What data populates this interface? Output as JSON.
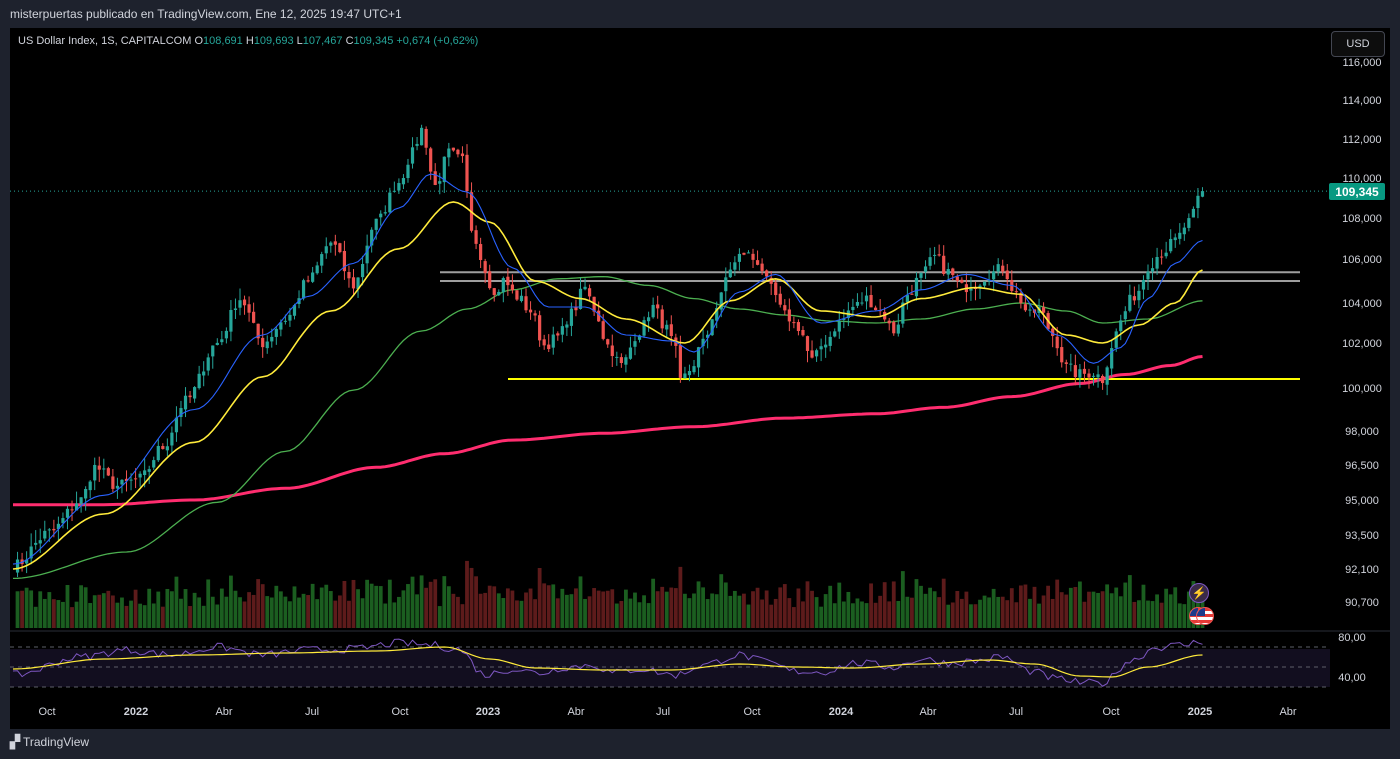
{
  "header": {
    "caption": "misterpuertas publicado en TradingView.com, Ene 12, 2025 19:47 UTC+1"
  },
  "legend": {
    "symbol": "US Dollar Index, 1S, CAPITALCOM",
    "o_label": "O",
    "o_value": "108,691",
    "h_label": "H",
    "h_value": "109,693",
    "l_label": "L",
    "l_value": "107,467",
    "c_label": "C",
    "c_value": "109,345",
    "change": "+0,674 (+0,62%)"
  },
  "toolbar": {
    "currency_label": "USD"
  },
  "price_badge": "109,345",
  "footer": {
    "brand": "TradingView"
  },
  "colors": {
    "up": "#26a69a",
    "down": "#ef5350",
    "vol_up": "#1b5e20",
    "vol_down": "#5d1b1b",
    "ema_fast": "#2962ff",
    "ema_yellow": "#ffeb3b",
    "ema_green": "#4caf50",
    "ema_long": "#ff2d6f",
    "support": "#ffff00",
    "resistance": "#9e9e9e",
    "rsi": "#7e57c2",
    "rsi_ma": "#ffeb3b"
  },
  "chart_data": {
    "type": "candlestick",
    "price_ticks": [
      "116,000",
      "114,000",
      "112,000",
      "110,000",
      "108,000",
      "106,000",
      "104,000",
      "102,000",
      "100,000",
      "98,000",
      "96,500",
      "95,000",
      "93,500",
      "92,100",
      "90,700"
    ],
    "rsi_ticks": [
      "80,00",
      "40,00"
    ],
    "time_ticks": [
      "Oct",
      "2022",
      "Abr",
      "Jul",
      "Oct",
      "2023",
      "Abr",
      "Jul",
      "Oct",
      "2024",
      "Abr",
      "Jul",
      "Oct",
      "2025",
      "Abr"
    ],
    "last_price": 109.345,
    "support_level": 100.4,
    "resistance_band": [
      105.0,
      105.4
    ],
    "anchors": [
      [
        0,
        92.2
      ],
      [
        8,
        93.6
      ],
      [
        15,
        95.0
      ],
      [
        18,
        96.4
      ],
      [
        23,
        95.6
      ],
      [
        28,
        95.9
      ],
      [
        33,
        97.3
      ],
      [
        38,
        99.4
      ],
      [
        45,
        102.0
      ],
      [
        50,
        104.2
      ],
      [
        55,
        102.0
      ],
      [
        60,
        103.2
      ],
      [
        65,
        105.0
      ],
      [
        70,
        106.8
      ],
      [
        75,
        104.8
      ],
      [
        80,
        107.8
      ],
      [
        85,
        109.8
      ],
      [
        88,
        111.3
      ],
      [
        90,
        112.5
      ],
      [
        93,
        109.6
      ],
      [
        96,
        111.3
      ],
      [
        99,
        110.9
      ],
      [
        101,
        107.5
      ],
      [
        104,
        105.6
      ],
      [
        106,
        104.3
      ],
      [
        108,
        105.0
      ],
      [
        111,
        104.3
      ],
      [
        114,
        103.6
      ],
      [
        117,
        101.9
      ],
      [
        120,
        102.3
      ],
      [
        123,
        103.5
      ],
      [
        126,
        104.7
      ],
      [
        128,
        103.7
      ],
      [
        131,
        101.9
      ],
      [
        134,
        101.0
      ],
      [
        138,
        102.6
      ],
      [
        141,
        103.8
      ],
      [
        144,
        102.7
      ],
      [
        146,
        101.6
      ],
      [
        147,
        100.2
      ],
      [
        149,
        100.8
      ],
      [
        152,
        102.0
      ],
      [
        155,
        103.8
      ],
      [
        158,
        105.6
      ],
      [
        161,
        106.3
      ],
      [
        164,
        105.9
      ],
      [
        167,
        104.6
      ],
      [
        170,
        103.4
      ],
      [
        173,
        102.8
      ],
      [
        176,
        101.2
      ],
      [
        179,
        102.1
      ],
      [
        182,
        103.0
      ],
      [
        185,
        103.8
      ],
      [
        188,
        104.2
      ],
      [
        191,
        103.6
      ],
      [
        194,
        102.6
      ],
      [
        197,
        104.4
      ],
      [
        200,
        105.2
      ],
      [
        203,
        106.1
      ],
      [
        206,
        105.4
      ],
      [
        209,
        104.7
      ],
      [
        212,
        104.9
      ],
      [
        215,
        105.3
      ],
      [
        218,
        105.6
      ],
      [
        221,
        104.4
      ],
      [
        224,
        103.4
      ],
      [
        226,
        103.7
      ],
      [
        229,
        102.4
      ],
      [
        232,
        100.9
      ],
      [
        235,
        100.6
      ],
      [
        238,
        100.7
      ],
      [
        240,
        100.4
      ],
      [
        242,
        101.9
      ],
      [
        244,
        103.1
      ],
      [
        246,
        104.1
      ],
      [
        248,
        104.6
      ],
      [
        250,
        105.7
      ],
      [
        253,
        106.3
      ],
      [
        256,
        106.9
      ],
      [
        259,
        107.8
      ],
      [
        262,
        109.345
      ]
    ],
    "ema_fast_anchors": [
      [
        0,
        92.3
      ],
      [
        20,
        95.2
      ],
      [
        40,
        99.0
      ],
      [
        55,
        102.4
      ],
      [
        65,
        104.3
      ],
      [
        75,
        105.8
      ],
      [
        85,
        108.5
      ],
      [
        92,
        110.2
      ],
      [
        100,
        109.3
      ],
      [
        110,
        105.6
      ],
      [
        118,
        103.8
      ],
      [
        126,
        103.8
      ],
      [
        135,
        102.4
      ],
      [
        145,
        102.1
      ],
      [
        150,
        101.6
      ],
      [
        160,
        104.5
      ],
      [
        168,
        105.3
      ],
      [
        178,
        103.0
      ],
      [
        190,
        103.6
      ],
      [
        200,
        104.6
      ],
      [
        210,
        105.3
      ],
      [
        220,
        104.8
      ],
      [
        230,
        102.4
      ],
      [
        238,
        101.1
      ],
      [
        244,
        101.8
      ],
      [
        250,
        104.2
      ],
      [
        256,
        105.8
      ],
      [
        262,
        106.9
      ]
    ],
    "ema_yellow_anchors": [
      [
        0,
        92.1
      ],
      [
        20,
        94.4
      ],
      [
        40,
        97.5
      ],
      [
        55,
        100.5
      ],
      [
        70,
        103.6
      ],
      [
        85,
        106.5
      ],
      [
        97,
        108.8
      ],
      [
        105,
        107.8
      ],
      [
        115,
        105.0
      ],
      [
        125,
        104.2
      ],
      [
        135,
        103.2
      ],
      [
        148,
        102.0
      ],
      [
        158,
        104.1
      ],
      [
        168,
        105.1
      ],
      [
        178,
        103.6
      ],
      [
        190,
        103.3
      ],
      [
        200,
        104.2
      ],
      [
        212,
        104.7
      ],
      [
        222,
        104.4
      ],
      [
        232,
        102.4
      ],
      [
        240,
        102.0
      ],
      [
        248,
        102.9
      ],
      [
        256,
        104.0
      ],
      [
        262,
        105.5
      ]
    ],
    "ema_green_anchors": [
      [
        0,
        91.7
      ],
      [
        25,
        92.8
      ],
      [
        45,
        94.9
      ],
      [
        60,
        97.1
      ],
      [
        75,
        99.9
      ],
      [
        90,
        102.6
      ],
      [
        100,
        103.7
      ],
      [
        110,
        104.6
      ],
      [
        120,
        105.1
      ],
      [
        130,
        105.2
      ],
      [
        140,
        104.8
      ],
      [
        150,
        104.2
      ],
      [
        160,
        103.7
      ],
      [
        170,
        103.4
      ],
      [
        180,
        103.1
      ],
      [
        190,
        103.0
      ],
      [
        200,
        103.2
      ],
      [
        212,
        103.7
      ],
      [
        222,
        104.0
      ],
      [
        232,
        103.6
      ],
      [
        240,
        103.0
      ],
      [
        250,
        103.2
      ],
      [
        262,
        104.1
      ]
    ],
    "ema_long_anchors": [
      [
        0,
        94.8
      ],
      [
        20,
        94.8
      ],
      [
        40,
        95.0
      ],
      [
        60,
        95.5
      ],
      [
        80,
        96.4
      ],
      [
        95,
        97.0
      ],
      [
        110,
        97.6
      ],
      [
        130,
        97.9
      ],
      [
        150,
        98.2
      ],
      [
        170,
        98.6
      ],
      [
        190,
        98.8
      ],
      [
        205,
        99.1
      ],
      [
        220,
        99.6
      ],
      [
        235,
        100.2
      ],
      [
        245,
        100.6
      ],
      [
        255,
        101.0
      ],
      [
        262,
        101.4
      ]
    ],
    "rsi_anchors": [
      [
        0,
        42
      ],
      [
        15,
        60
      ],
      [
        25,
        67
      ],
      [
        35,
        62
      ],
      [
        45,
        70
      ],
      [
        55,
        62
      ],
      [
        65,
        67
      ],
      [
        75,
        68
      ],
      [
        85,
        74
      ],
      [
        92,
        72
      ],
      [
        98,
        68
      ],
      [
        104,
        42
      ],
      [
        110,
        48
      ],
      [
        116,
        44
      ],
      [
        122,
        50
      ],
      [
        128,
        52
      ],
      [
        132,
        44
      ],
      [
        138,
        48
      ],
      [
        146,
        42
      ],
      [
        152,
        52
      ],
      [
        160,
        62
      ],
      [
        166,
        55
      ],
      [
        172,
        46
      ],
      [
        178,
        45
      ],
      [
        186,
        54
      ],
      [
        194,
        50
      ],
      [
        200,
        58
      ],
      [
        206,
        54
      ],
      [
        212,
        56
      ],
      [
        218,
        60
      ],
      [
        224,
        46
      ],
      [
        230,
        38
      ],
      [
        236,
        34
      ],
      [
        240,
        34
      ],
      [
        246,
        56
      ],
      [
        252,
        70
      ],
      [
        258,
        72
      ],
      [
        262,
        76
      ]
    ],
    "rsi_ma_anchors": [
      [
        0,
        48
      ],
      [
        20,
        58
      ],
      [
        40,
        62
      ],
      [
        60,
        64
      ],
      [
        80,
        66
      ],
      [
        95,
        70
      ],
      [
        105,
        58
      ],
      [
        115,
        49
      ],
      [
        130,
        47
      ],
      [
        145,
        47
      ],
      [
        160,
        53
      ],
      [
        172,
        50
      ],
      [
        185,
        49
      ],
      [
        200,
        53
      ],
      [
        215,
        57
      ],
      [
        225,
        53
      ],
      [
        235,
        41
      ],
      [
        242,
        40
      ],
      [
        250,
        50
      ],
      [
        262,
        62
      ]
    ]
  }
}
